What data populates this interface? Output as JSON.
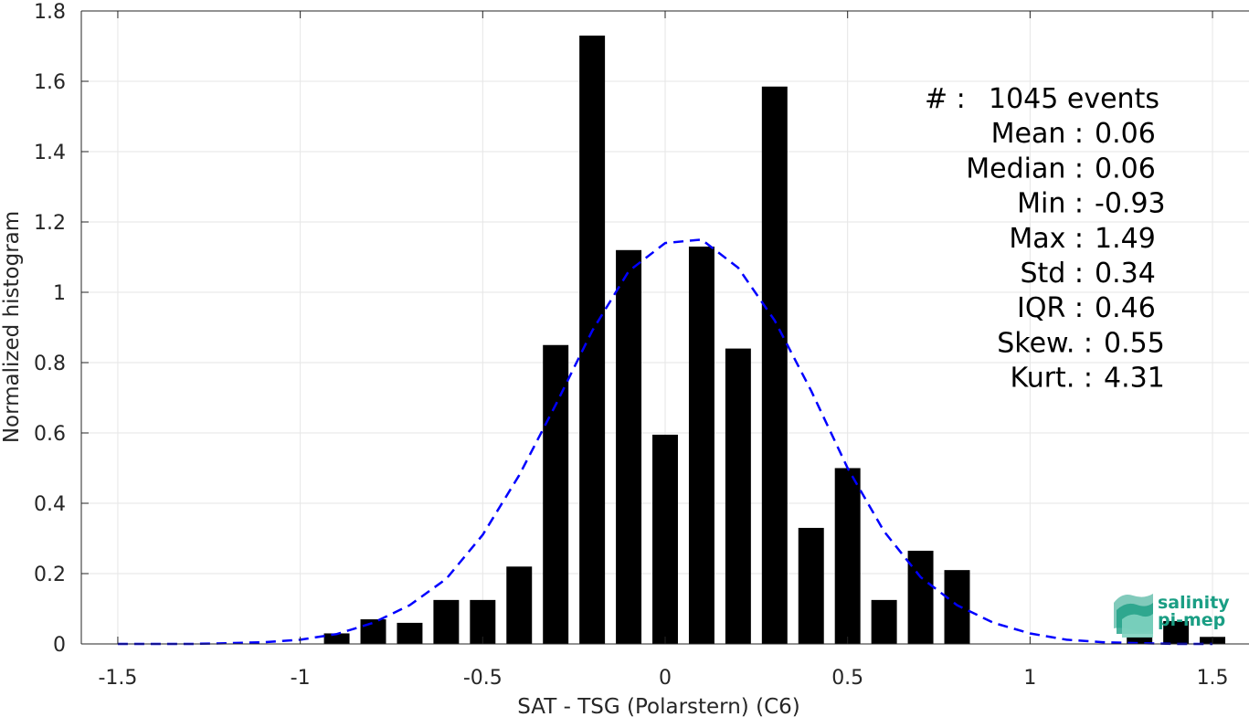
{
  "chart_data": {
    "type": "bar",
    "xlabel": "SAT - TSG (Polarstern) (C6)",
    "ylabel": "Normalized histogram",
    "xlim": [
      -1.6,
      1.6
    ],
    "ylim": [
      0,
      1.8
    ],
    "grid": true,
    "xticks": [
      -1.5,
      -1,
      -0.5,
      0,
      0.5,
      1,
      1.5
    ],
    "xtick_labels": [
      "-1.5",
      "-1",
      "-0.5",
      "0",
      "0.5",
      "1",
      "1.5"
    ],
    "yticks": [
      0,
      0.2,
      0.4,
      0.6,
      0.8,
      1,
      1.2,
      1.4,
      1.6,
      1.8
    ],
    "ytick_labels": [
      "0",
      "0.2",
      "0.4",
      "0.6",
      "0.8",
      "1",
      "1.2",
      "1.4",
      "1.6",
      "1.8"
    ],
    "bar_width": 0.07,
    "bar_color": "#000000",
    "bars": {
      "x": [
        -0.9,
        -0.8,
        -0.7,
        -0.6,
        -0.5,
        -0.4,
        -0.3,
        -0.2,
        -0.1,
        0.0,
        0.1,
        0.2,
        0.3,
        0.4,
        0.5,
        0.6,
        0.7,
        0.8,
        1.3,
        1.4,
        1.5
      ],
      "values": [
        0.03,
        0.07,
        0.06,
        0.125,
        0.125,
        0.22,
        0.85,
        1.73,
        1.12,
        0.595,
        1.13,
        0.84,
        1.585,
        0.33,
        0.5,
        0.125,
        0.265,
        0.21,
        0.02,
        0.065,
        0.02
      ]
    },
    "fit_curve": {
      "style": "dashed",
      "color": "#0000ff",
      "x": [
        -1.5,
        -1.4,
        -1.3,
        -1.2,
        -1.1,
        -1.0,
        -0.9,
        -0.8,
        -0.7,
        -0.6,
        -0.5,
        -0.4,
        -0.3,
        -0.2,
        -0.1,
        0.0,
        0.1,
        0.2,
        0.3,
        0.4,
        0.5,
        0.6,
        0.7,
        0.8,
        0.9,
        1.0,
        1.1,
        1.2,
        1.3,
        1.4,
        1.5
      ],
      "y": [
        0.0,
        0.0,
        0.0,
        0.002,
        0.005,
        0.012,
        0.028,
        0.06,
        0.11,
        0.185,
        0.31,
        0.48,
        0.68,
        0.89,
        1.06,
        1.14,
        1.15,
        1.07,
        0.92,
        0.72,
        0.5,
        0.32,
        0.19,
        0.11,
        0.06,
        0.03,
        0.012,
        0.005,
        0.002,
        0.0,
        0.0
      ]
    }
  },
  "stats": [
    {
      "label": "#  :",
      "value": "1045 events"
    },
    {
      "label": "Mean :",
      "value": "0.06"
    },
    {
      "label": "Median :",
      "value": "0.06"
    },
    {
      "label": "Min :",
      "value": "-0.93"
    },
    {
      "label": "Max :",
      "value": "1.49"
    },
    {
      "label": "Std :",
      "value": "0.34"
    },
    {
      "label": "IQR :",
      "value": "0.46"
    },
    {
      "label": "Skew. :",
      "value": "0.55"
    },
    {
      "label": "Kurt. :",
      "value": "4.31"
    }
  ],
  "logo": {
    "line1": "salinity",
    "line2": "pi-mep",
    "color": "#1a9e84"
  }
}
